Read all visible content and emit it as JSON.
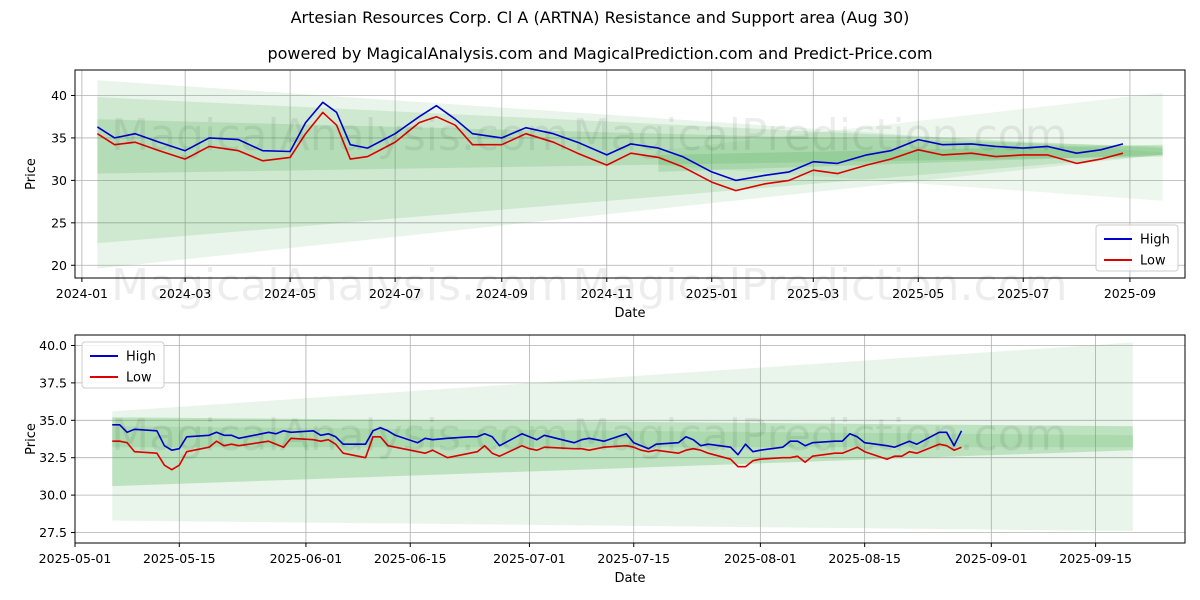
{
  "title": "Artesian Resources Corp. Cl A (ARTNA) Resistance and Support area (Aug 30)",
  "subtitle": "powered by MagicalAnalysis.com and MagicalPrediction.com and Predict-Price.com",
  "watermarks": [
    "MagicalAnalysis.com",
    "MagicalPrediction.com"
  ],
  "colors": {
    "high": "#0000cc",
    "low": "#dd0000",
    "band": "#4caf50",
    "grid": "#b0b0b0"
  },
  "chart_data": [
    {
      "type": "line",
      "xlabel": "Date",
      "ylabel": "Price",
      "xlim": [
        "2023-12-28",
        "2025-10-03"
      ],
      "ylim": [
        18.5,
        43
      ],
      "yticks": [
        20,
        25,
        30,
        35,
        40
      ],
      "xticks": [
        "2024-01",
        "2024-03",
        "2024-05",
        "2024-07",
        "2024-09",
        "2024-11",
        "2025-01",
        "2025-03",
        "2025-05",
        "2025-07",
        "2025-09"
      ],
      "legend": {
        "placement": "lower-right",
        "entries": [
          "High",
          "Low"
        ]
      },
      "bands": [
        {
          "start": "2024-01-10",
          "end": "2025-09-20",
          "top": [
            41.8,
            33.3
          ],
          "bottom": [
            19.6,
            33.0
          ],
          "opacity": 0.12
        },
        {
          "start": "2024-01-10",
          "end": "2025-09-20",
          "top": [
            39.8,
            33.8
          ],
          "bottom": [
            22.6,
            33.0
          ],
          "opacity": 0.16
        },
        {
          "start": "2024-01-10",
          "end": "2025-09-20",
          "top": [
            37.2,
            34.0
          ],
          "bottom": [
            30.8,
            32.8
          ],
          "opacity": 0.2
        },
        {
          "start": "2024-12-01",
          "end": "2025-09-20",
          "top": [
            33.5,
            40.3
          ],
          "bottom": [
            31.8,
            27.6
          ],
          "opacity": 0.1
        },
        {
          "start": "2024-12-01",
          "end": "2025-09-20",
          "top": [
            33.0,
            34.2
          ],
          "bottom": [
            31.0,
            33.0
          ],
          "opacity": 0.22
        }
      ],
      "series": [
        {
          "name": "High",
          "dates": [
            "2024-01-10",
            "2024-01-20",
            "2024-02-01",
            "2024-02-15",
            "2024-03-01",
            "2024-03-15",
            "2024-04-01",
            "2024-04-15",
            "2024-05-01",
            "2024-05-10",
            "2024-05-20",
            "2024-05-28",
            "2024-06-05",
            "2024-06-15",
            "2024-07-01",
            "2024-07-15",
            "2024-07-25",
            "2024-08-05",
            "2024-08-15",
            "2024-09-01",
            "2024-09-15",
            "2024-10-01",
            "2024-10-15",
            "2024-11-01",
            "2024-11-15",
            "2024-12-01",
            "2024-12-15",
            "2025-01-01",
            "2025-01-15",
            "2025-02-01",
            "2025-02-15",
            "2025-03-01",
            "2025-03-15",
            "2025-04-01",
            "2025-04-15",
            "2025-05-01",
            "2025-05-15",
            "2025-06-01",
            "2025-06-15",
            "2025-07-01",
            "2025-07-15",
            "2025-08-01",
            "2025-08-15",
            "2025-08-28"
          ],
          "values": [
            36.3,
            35.0,
            35.5,
            34.5,
            33.5,
            35.0,
            34.8,
            33.5,
            33.4,
            36.8,
            39.2,
            38.0,
            34.2,
            33.8,
            35.5,
            37.5,
            38.8,
            37.2,
            35.5,
            35.0,
            36.2,
            35.5,
            34.5,
            33.0,
            34.3,
            33.8,
            32.8,
            31.0,
            30.0,
            30.6,
            31.0,
            32.2,
            32.0,
            33.0,
            33.5,
            34.8,
            34.2,
            34.3,
            34.0,
            33.8,
            34.0,
            33.2,
            33.6,
            34.3
          ]
        },
        {
          "name": "Low",
          "dates": [
            "2024-01-10",
            "2024-01-20",
            "2024-02-01",
            "2024-02-15",
            "2024-03-01",
            "2024-03-15",
            "2024-04-01",
            "2024-04-15",
            "2024-05-01",
            "2024-05-10",
            "2024-05-20",
            "2024-05-28",
            "2024-06-05",
            "2024-06-15",
            "2024-07-01",
            "2024-07-15",
            "2024-07-25",
            "2024-08-05",
            "2024-08-15",
            "2024-09-01",
            "2024-09-15",
            "2024-10-01",
            "2024-10-15",
            "2024-11-01",
            "2024-11-15",
            "2024-12-01",
            "2024-12-15",
            "2025-01-01",
            "2025-01-15",
            "2025-02-01",
            "2025-02-15",
            "2025-03-01",
            "2025-03-15",
            "2025-04-01",
            "2025-04-15",
            "2025-05-01",
            "2025-05-15",
            "2025-06-01",
            "2025-06-15",
            "2025-07-01",
            "2025-07-15",
            "2025-08-01",
            "2025-08-15",
            "2025-08-28"
          ],
          "values": [
            35.5,
            34.2,
            34.5,
            33.5,
            32.5,
            34.0,
            33.5,
            32.3,
            32.7,
            35.5,
            38.0,
            36.5,
            32.5,
            32.8,
            34.5,
            36.8,
            37.5,
            36.5,
            34.2,
            34.2,
            35.5,
            34.5,
            33.2,
            31.8,
            33.2,
            32.7,
            31.6,
            29.8,
            28.8,
            29.6,
            30.0,
            31.2,
            30.8,
            31.8,
            32.5,
            33.6,
            33.0,
            33.2,
            32.8,
            33.0,
            33.0,
            32.0,
            32.5,
            33.2
          ]
        }
      ]
    },
    {
      "type": "line",
      "xlabel": "Date",
      "ylabel": "Price",
      "xlim": [
        "2025-05-01",
        "2025-09-27"
      ],
      "ylim": [
        26.8,
        40.7
      ],
      "yticks": [
        27.5,
        30.0,
        32.5,
        35.0,
        37.5,
        40.0
      ],
      "xticks": [
        "2025-05-01",
        "2025-05-15",
        "2025-06-01",
        "2025-06-15",
        "2025-07-01",
        "2025-07-15",
        "2025-08-01",
        "2025-08-15",
        "2025-09-01",
        "2025-09-15"
      ],
      "legend": {
        "placement": "upper-left",
        "entries": [
          "High",
          "Low"
        ]
      },
      "bands": [
        {
          "start": "2025-05-06",
          "end": "2025-09-20",
          "top": [
            35.6,
            40.2
          ],
          "bottom": [
            28.3,
            27.6
          ],
          "opacity": 0.12
        },
        {
          "start": "2025-05-06",
          "end": "2025-09-20",
          "top": [
            35.2,
            34.6
          ],
          "bottom": [
            30.6,
            33.0
          ],
          "opacity": 0.28
        },
        {
          "start": "2025-05-06",
          "end": "2025-09-20",
          "top": [
            34.6,
            34.0
          ],
          "bottom": [
            33.2,
            33.2
          ],
          "opacity": 0.15
        }
      ],
      "series": [
        {
          "name": "High",
          "dates": [
            "2025-05-06",
            "2025-05-07",
            "2025-05-08",
            "2025-05-09",
            "2025-05-12",
            "2025-05-13",
            "2025-05-14",
            "2025-05-15",
            "2025-05-16",
            "2025-05-19",
            "2025-05-20",
            "2025-05-21",
            "2025-05-22",
            "2025-05-23",
            "2025-05-27",
            "2025-05-28",
            "2025-05-29",
            "2025-05-30",
            "2025-06-02",
            "2025-06-03",
            "2025-06-04",
            "2025-06-05",
            "2025-06-06",
            "2025-06-09",
            "2025-06-10",
            "2025-06-11",
            "2025-06-12",
            "2025-06-13",
            "2025-06-16",
            "2025-06-17",
            "2025-06-18",
            "2025-06-20",
            "2025-06-23",
            "2025-06-24",
            "2025-06-25",
            "2025-06-26",
            "2025-06-27",
            "2025-06-30",
            "2025-07-01",
            "2025-07-02",
            "2025-07-03",
            "2025-07-07",
            "2025-07-08",
            "2025-07-09",
            "2025-07-10",
            "2025-07-11",
            "2025-07-14",
            "2025-07-15",
            "2025-07-16",
            "2025-07-17",
            "2025-07-18",
            "2025-07-21",
            "2025-07-22",
            "2025-07-23",
            "2025-07-24",
            "2025-07-25",
            "2025-07-28",
            "2025-07-29",
            "2025-07-30",
            "2025-07-31",
            "2025-08-01",
            "2025-08-04",
            "2025-08-05",
            "2025-08-06",
            "2025-08-07",
            "2025-08-08",
            "2025-08-11",
            "2025-08-12",
            "2025-08-13",
            "2025-08-14",
            "2025-08-15",
            "2025-08-18",
            "2025-08-19",
            "2025-08-20",
            "2025-08-21",
            "2025-08-22",
            "2025-08-25",
            "2025-08-26",
            "2025-08-27",
            "2025-08-28"
          ],
          "values": [
            34.7,
            34.7,
            34.2,
            34.4,
            34.3,
            33.3,
            33.0,
            33.1,
            33.9,
            34.0,
            34.2,
            34.0,
            34.0,
            33.8,
            34.2,
            34.1,
            34.3,
            34.2,
            34.3,
            34.0,
            34.1,
            33.9,
            33.4,
            33.4,
            34.3,
            34.5,
            34.3,
            34.0,
            33.5,
            33.8,
            33.7,
            33.8,
            33.9,
            33.9,
            34.1,
            33.9,
            33.3,
            34.1,
            33.9,
            33.7,
            34.0,
            33.5,
            33.7,
            33.8,
            33.7,
            33.6,
            34.1,
            33.5,
            33.3,
            33.1,
            33.4,
            33.5,
            33.9,
            33.7,
            33.3,
            33.4,
            33.2,
            32.7,
            33.4,
            32.9,
            33.0,
            33.2,
            33.6,
            33.6,
            33.3,
            33.5,
            33.6,
            33.6,
            34.1,
            33.9,
            33.5,
            33.3,
            33.2,
            33.4,
            33.6,
            33.4,
            34.2,
            34.2,
            33.3,
            34.3
          ]
        },
        {
          "name": "Low",
          "dates": [
            "2025-05-06",
            "2025-05-07",
            "2025-05-08",
            "2025-05-09",
            "2025-05-12",
            "2025-05-13",
            "2025-05-14",
            "2025-05-15",
            "2025-05-16",
            "2025-05-19",
            "2025-05-20",
            "2025-05-21",
            "2025-05-22",
            "2025-05-23",
            "2025-05-27",
            "2025-05-28",
            "2025-05-29",
            "2025-05-30",
            "2025-06-02",
            "2025-06-03",
            "2025-06-04",
            "2025-06-05",
            "2025-06-06",
            "2025-06-09",
            "2025-06-10",
            "2025-06-11",
            "2025-06-12",
            "2025-06-13",
            "2025-06-16",
            "2025-06-17",
            "2025-06-18",
            "2025-06-20",
            "2025-06-23",
            "2025-06-24",
            "2025-06-25",
            "2025-06-26",
            "2025-06-27",
            "2025-06-30",
            "2025-07-01",
            "2025-07-02",
            "2025-07-03",
            "2025-07-07",
            "2025-07-08",
            "2025-07-09",
            "2025-07-10",
            "2025-07-11",
            "2025-07-14",
            "2025-07-15",
            "2025-07-16",
            "2025-07-17",
            "2025-07-18",
            "2025-07-21",
            "2025-07-22",
            "2025-07-23",
            "2025-07-24",
            "2025-07-25",
            "2025-07-28",
            "2025-07-29",
            "2025-07-30",
            "2025-07-31",
            "2025-08-01",
            "2025-08-04",
            "2025-08-05",
            "2025-08-06",
            "2025-08-07",
            "2025-08-08",
            "2025-08-11",
            "2025-08-12",
            "2025-08-13",
            "2025-08-14",
            "2025-08-15",
            "2025-08-18",
            "2025-08-19",
            "2025-08-20",
            "2025-08-21",
            "2025-08-22",
            "2025-08-25",
            "2025-08-26",
            "2025-08-27",
            "2025-08-28"
          ],
          "values": [
            33.6,
            33.6,
            33.5,
            32.9,
            32.8,
            32.0,
            31.7,
            32.0,
            32.9,
            33.2,
            33.6,
            33.3,
            33.4,
            33.3,
            33.6,
            33.4,
            33.2,
            33.8,
            33.7,
            33.6,
            33.7,
            33.4,
            32.8,
            32.5,
            33.9,
            33.9,
            33.3,
            33.2,
            32.9,
            32.8,
            33.0,
            32.5,
            32.8,
            32.9,
            33.3,
            32.8,
            32.6,
            33.3,
            33.1,
            33.0,
            33.2,
            33.1,
            33.1,
            33.0,
            33.1,
            33.2,
            33.3,
            33.2,
            33.0,
            32.9,
            33.0,
            32.8,
            33.0,
            33.1,
            33.0,
            32.8,
            32.4,
            31.9,
            31.9,
            32.3,
            32.4,
            32.5,
            32.5,
            32.6,
            32.2,
            32.6,
            32.8,
            32.8,
            33.0,
            33.2,
            32.9,
            32.4,
            32.6,
            32.6,
            32.9,
            32.8,
            33.4,
            33.3,
            33.0,
            33.2
          ]
        }
      ]
    }
  ]
}
